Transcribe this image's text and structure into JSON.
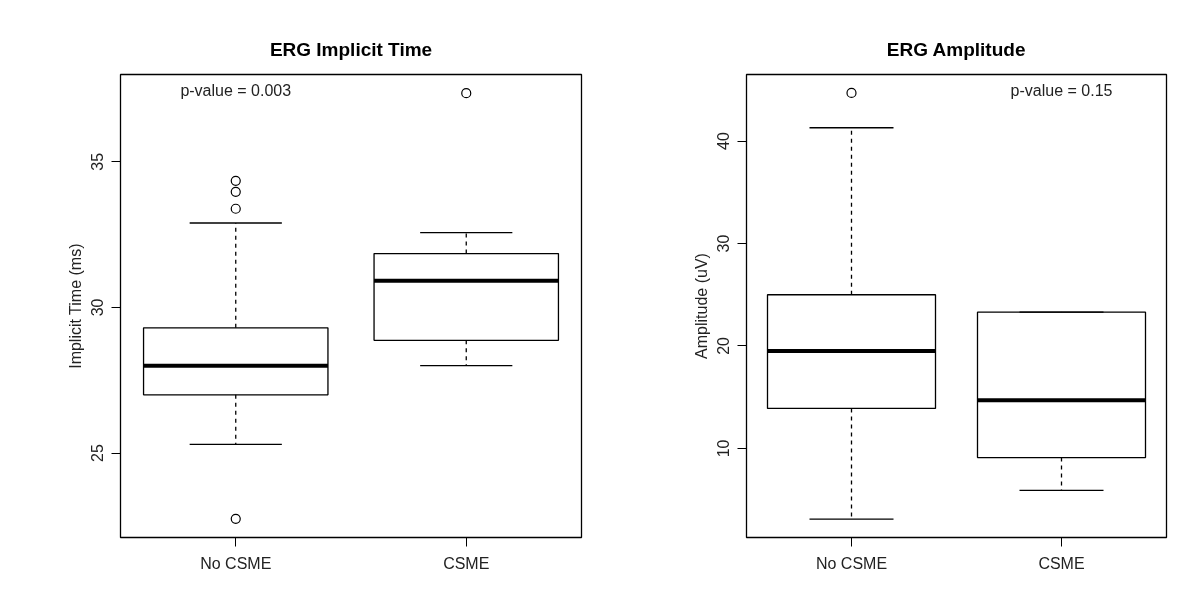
{
  "chart_data": [
    {
      "type": "box",
      "title": "ERG Implicit Time",
      "ylabel": "Implicit Time (ms)",
      "categories": [
        "No CSME",
        "CSME"
      ],
      "boxes": [
        {
          "low": 25.3,
          "q1": 27.0,
          "median": 28.0,
          "q3": 29.3,
          "high": 32.9,
          "outliers": [
            34.35,
            33.97,
            33.39,
            22.74
          ]
        },
        {
          "low": 28.0,
          "q1": 28.87,
          "median": 30.92,
          "q3": 31.85,
          "high": 32.57,
          "outliers": [
            37.36
          ]
        }
      ],
      "ylim": [
        22.1,
        38.0
      ],
      "yticks": [
        25,
        30,
        35
      ],
      "grid": false,
      "marker": "circle",
      "annotations": [
        "p-value = 0.003"
      ]
    },
    {
      "type": "box",
      "title": "ERG Amplitude",
      "ylabel": "Amplitude (uV)",
      "categories": [
        "No CSME",
        "CSME"
      ],
      "boxes": [
        {
          "low": 3.1,
          "q1": 13.9,
          "median": 19.5,
          "q3": 25.0,
          "high": 41.3,
          "outliers": [
            44.7
          ]
        },
        {
          "low": 5.9,
          "q1": 9.1,
          "median": 14.7,
          "q3": 23.3,
          "high": 23.3
        }
      ],
      "ylim": [
        1.3,
        46.5
      ],
      "yticks": [
        10,
        20,
        30,
        40
      ],
      "grid": false,
      "marker": "circle",
      "annotations": [
        "p-value = 0.15"
      ]
    }
  ]
}
